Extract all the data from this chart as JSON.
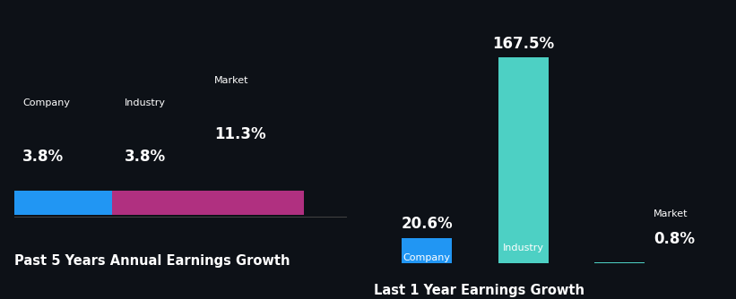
{
  "background_color": "#0d1117",
  "chart1": {
    "title": "Past 5 Years Annual Earnings Growth",
    "bars": [
      {
        "label": "Company",
        "value": 3.8,
        "color": "#2196f3"
      },
      {
        "label": "Industry",
        "value": 3.8,
        "color": "#4dd0c4"
      },
      {
        "label": "Market",
        "value": 11.3,
        "color": "#b03080"
      }
    ]
  },
  "chart2": {
    "title": "Last 1 Year Earnings Growth",
    "bars": [
      {
        "label": "Company",
        "value": 20.6,
        "color": "#2196f3"
      },
      {
        "label": "Industry",
        "value": 167.5,
        "color": "#4dd0c4"
      },
      {
        "label": "Market",
        "value": 0.8,
        "color": "#4dd0c4"
      }
    ]
  },
  "text_color": "#ffffff",
  "title_fontsize": 10.5,
  "label_fontsize": 8,
  "value_fontsize": 12,
  "bar_label_fontsize": 8
}
